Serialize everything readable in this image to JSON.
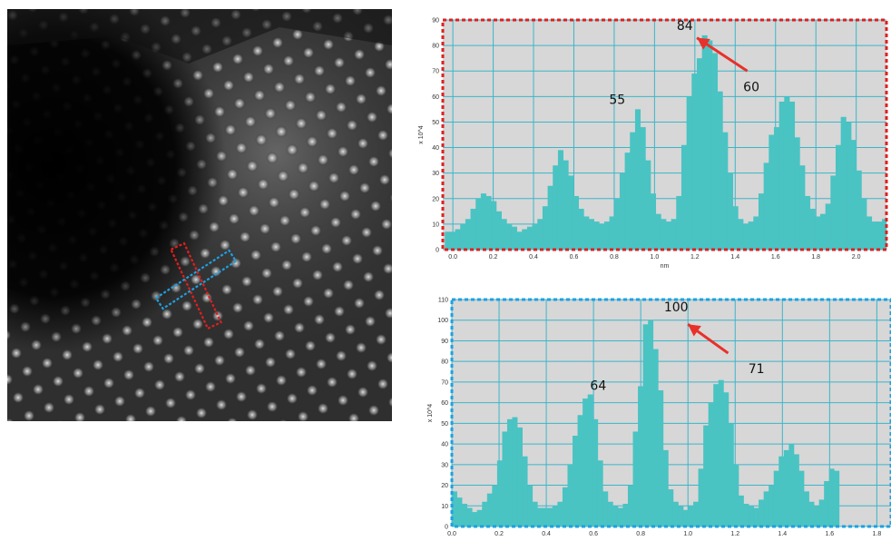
{
  "colors": {
    "bar": "#4ac3c3",
    "plot_bg": "#d7d7d7",
    "grid": "#3bb6c8",
    "arrow": "#e8312a",
    "frame_top": "#e01f1f",
    "frame_bottom": "#1fa0e0"
  },
  "image": {
    "description_icon": "stem-lattice-micrograph",
    "markers": [
      {
        "name": "red-line-profile-box",
        "color": "#e01f1f"
      },
      {
        "name": "blue-line-profile-box",
        "color": "#1fa0e0"
      }
    ]
  },
  "chart_data": [
    {
      "type": "bar",
      "xlabel": "nm",
      "ylabel": "x 10^4",
      "xlim": [
        -0.05,
        2.15
      ],
      "ylim": [
        0,
        90
      ],
      "xticks": [
        "0.0",
        "0.2",
        "0.4",
        "0.6",
        "0.8",
        "1.0",
        "1.2",
        "1.4",
        "1.6",
        "1.8",
        "2.0"
      ],
      "yticks": [
        "0",
        "10",
        "20",
        "30",
        "40",
        "50",
        "60",
        "70",
        "80",
        "90"
      ],
      "grid": true,
      "bin_width": 0.0255,
      "x_start": -0.04,
      "values": [
        7,
        7,
        8,
        10,
        12,
        16,
        20,
        22,
        21,
        19,
        15,
        12,
        10,
        9,
        7,
        8,
        9,
        10,
        12,
        17,
        25,
        33,
        39,
        35,
        29,
        21,
        16,
        13,
        12,
        11,
        10,
        11,
        13,
        20,
        30,
        38,
        46,
        55,
        48,
        35,
        22,
        14,
        12,
        11,
        12,
        21,
        41,
        60,
        69,
        75,
        84,
        82,
        77,
        62,
        46,
        30,
        17,
        12,
        10,
        11,
        13,
        22,
        34,
        45,
        48,
        58,
        60,
        58,
        44,
        33,
        21,
        16,
        13,
        14,
        18,
        29,
        41,
        52,
        50,
        43,
        31,
        20,
        13,
        11,
        11,
        12,
        14,
        17,
        22,
        28,
        34,
        33,
        26
      ]
    },
    {
      "type": "bar",
      "xlabel": "nm",
      "ylabel": "x 10^4",
      "xlim": [
        0,
        1.86
      ],
      "ylim": [
        0,
        110
      ],
      "xticks": [
        "0.0",
        "0.2",
        "0.4",
        "0.6",
        "0.8",
        "1.0",
        "1.2",
        "1.4",
        "1.6",
        "1.8"
      ],
      "yticks": [
        "0",
        "10",
        "20",
        "30",
        "40",
        "50",
        "60",
        "70",
        "80",
        "90",
        "100",
        "110"
      ],
      "grid": true,
      "bin_width": 0.0213,
      "x_start": 0.0,
      "values": [
        17,
        14,
        11,
        9,
        7,
        8,
        12,
        16,
        20,
        32,
        46,
        52,
        53,
        48,
        34,
        20,
        12,
        9,
        9,
        9,
        10,
        12,
        19,
        30,
        44,
        54,
        62,
        64,
        52,
        32,
        17,
        12,
        10,
        9,
        11,
        20,
        46,
        68,
        98,
        100,
        86,
        66,
        37,
        18,
        12,
        10,
        8,
        10,
        12,
        28,
        49,
        60,
        69,
        71,
        65,
        50,
        30,
        15,
        11,
        10,
        9,
        13,
        17,
        20,
        27,
        34,
        37,
        40,
        35,
        27,
        17,
        12,
        10,
        13,
        22,
        28,
        27
      ]
    }
  ],
  "annotations": {
    "top": [
      {
        "text": "84",
        "x": 1.15,
        "y": 85
      },
      {
        "text": "55",
        "x": 0.815,
        "y": 56
      },
      {
        "text": "60",
        "x": 1.48,
        "y": 61
      }
    ],
    "bottom": [
      {
        "text": "100",
        "x": 0.95,
        "y": 103
      },
      {
        "text": "64",
        "x": 0.62,
        "y": 65
      },
      {
        "text": "71",
        "x": 1.29,
        "y": 73
      }
    ]
  }
}
